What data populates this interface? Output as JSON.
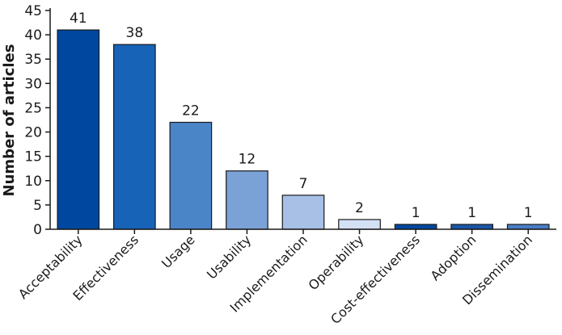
{
  "chart_data": {
    "type": "bar",
    "title": "",
    "xlabel": "",
    "ylabel": "Number of articles",
    "ylim": [
      0,
      45
    ],
    "yticks": [
      0,
      5,
      10,
      15,
      20,
      25,
      30,
      35,
      40,
      45
    ],
    "grid": false,
    "categories": [
      "Acceptability",
      "Effectiveness",
      "Usage",
      "Usability",
      "Implementation",
      "Operability",
      "Cost-effectiveness",
      "Adoption",
      "Dissemination"
    ],
    "values": [
      41,
      38,
      22,
      12,
      7,
      2,
      1,
      1,
      1
    ],
    "data_labels": [
      "41",
      "38",
      "22",
      "12",
      "7",
      "2",
      "1",
      "1",
      "1"
    ],
    "colors": [
      "#0047a0",
      "#1763b8",
      "#4a85c8",
      "#7ba2d6",
      "#a8bfe6",
      "#d4e0f4",
      "#0047a0",
      "#1a55a8",
      "#4a7cc4"
    ]
  }
}
